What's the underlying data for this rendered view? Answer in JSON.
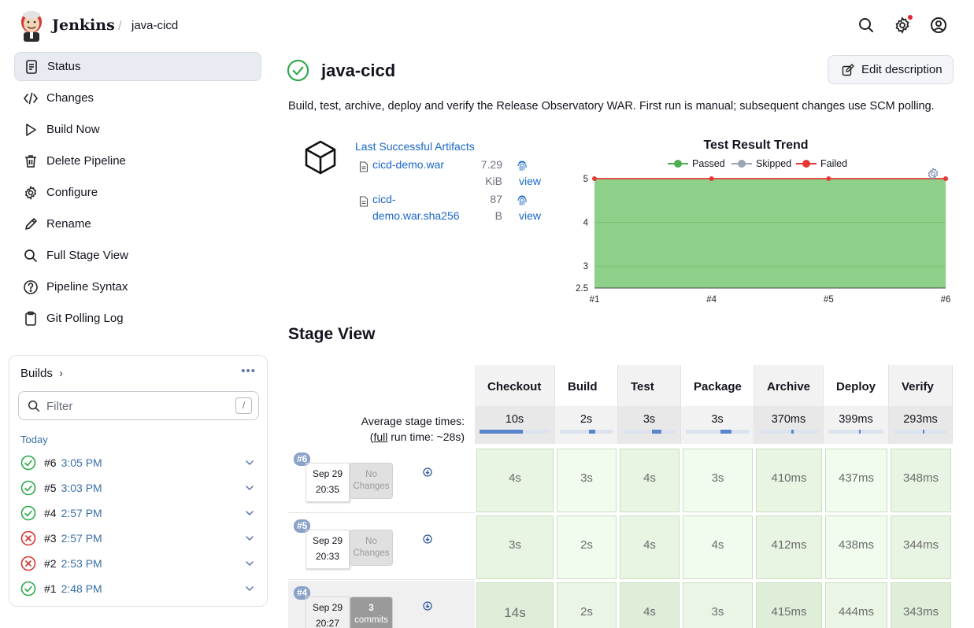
{
  "header": {
    "brand": "Jenkins",
    "breadcrumb": "java-cicd",
    "separator": "/",
    "icons": [
      "search-icon",
      "gear-icon",
      "account-icon"
    ]
  },
  "sidenav": {
    "items": [
      {
        "label": "Status",
        "icon": "document-icon",
        "active": true
      },
      {
        "label": "Changes",
        "icon": "code-icon"
      },
      {
        "label": "Build Now",
        "icon": "play-icon"
      },
      {
        "label": "Delete Pipeline",
        "icon": "trash-icon"
      },
      {
        "label": "Configure",
        "icon": "gear-icon"
      },
      {
        "label": "Rename",
        "icon": "pencil-icon"
      },
      {
        "label": "Full Stage View",
        "icon": "search-icon"
      },
      {
        "label": "Pipeline Syntax",
        "icon": "help-icon"
      },
      {
        "label": "Git Polling Log",
        "icon": "clipboard-icon"
      }
    ]
  },
  "builds": {
    "title": "Builds",
    "chevron": "›",
    "more": "•••",
    "filter_placeholder": "Filter",
    "filter_shortcut": "/",
    "group": "Today",
    "items": [
      {
        "number": "#6",
        "time": "3:05 PM",
        "status": "success"
      },
      {
        "number": "#5",
        "time": "3:03 PM",
        "status": "success"
      },
      {
        "number": "#4",
        "time": "2:57 PM",
        "status": "success"
      },
      {
        "number": "#3",
        "time": "2:57 PM",
        "status": "failed"
      },
      {
        "number": "#2",
        "time": "2:53 PM",
        "status": "failed"
      },
      {
        "number": "#1",
        "time": "2:48 PM",
        "status": "success"
      }
    ]
  },
  "main": {
    "title": "java-cicd",
    "edit_label": "Edit description",
    "description": "Build, test, archive, deploy and verify the Release Observatory WAR. First run is manual; subsequent changes use SCM polling."
  },
  "artifacts": {
    "title": "Last Successful Artifacts",
    "files": [
      {
        "name_line1": "cicd-demo.war",
        "name_line2": "",
        "size_line1": "7.29",
        "size_line2": "KiB",
        "view": "view"
      },
      {
        "name_line1": "cicd-",
        "name_line2": "demo.war.sha256",
        "size_line1": "87",
        "size_line2": "B",
        "view": "view"
      }
    ]
  },
  "chart_data": {
    "type": "area",
    "title": "Test Result Trend",
    "legend": [
      {
        "name": "Passed",
        "color": "#4caf50"
      },
      {
        "name": "Skipped",
        "color": "#9aa5b1"
      },
      {
        "name": "Failed",
        "color": "#e53935"
      }
    ],
    "legend_position": "top-center",
    "categories": [
      "#1",
      "#4",
      "#5",
      "#6"
    ],
    "series": [
      {
        "name": "Passed",
        "values": [
          5,
          5,
          5,
          5
        ],
        "color": "#8ed08a"
      },
      {
        "name": "Failed",
        "values": [
          5,
          5,
          5,
          5
        ],
        "color": "#e53935"
      }
    ],
    "yticks": [
      "5",
      "4",
      "3",
      "2.5"
    ],
    "ylim": [
      2.5,
      5
    ],
    "grid": true
  },
  "stage_view": {
    "title": "Stage View",
    "avg_label_line1": "Average stage times:",
    "avg_label_line2_prefix": "(",
    "avg_label_link": "full",
    "avg_label_line2_suffix": " run time: ~28s)",
    "stages": [
      {
        "name": "Checkout",
        "avg": "10s",
        "fill": 0.62
      },
      {
        "name": "Build",
        "avg": "2s",
        "fill": 0.12
      },
      {
        "name": "Test",
        "avg": "3s",
        "fill": 0.18
      },
      {
        "name": "Package",
        "avg": "3s",
        "fill": 0.18
      },
      {
        "name": "Archive",
        "avg": "370ms",
        "fill": 0.02
      },
      {
        "name": "Deploy",
        "avg": "399ms",
        "fill": 0.02
      },
      {
        "name": "Verify",
        "avg": "293ms",
        "fill": 0.02
      }
    ],
    "runs": [
      {
        "badge": "#6",
        "date": "Sep 29",
        "time": "20:35",
        "changes_line1": "No",
        "changes_line2": "Changes",
        "commits": false,
        "cells": [
          "4s",
          "3s",
          "4s",
          "3s",
          "410ms",
          "437ms",
          "348ms"
        ]
      },
      {
        "badge": "#5",
        "date": "Sep 29",
        "time": "20:33",
        "changes_line1": "No",
        "changes_line2": "Changes",
        "commits": false,
        "cells": [
          "3s",
          "2s",
          "4s",
          "4s",
          "412ms",
          "438ms",
          "344ms"
        ]
      },
      {
        "badge": "#4",
        "date": "Sep 29",
        "time": "20:27",
        "changes_line1": "3",
        "changes_line2": "commits",
        "commits": true,
        "cells": [
          "14s",
          "2s",
          "4s",
          "3s",
          "415ms",
          "444ms",
          "343ms"
        ]
      }
    ]
  }
}
